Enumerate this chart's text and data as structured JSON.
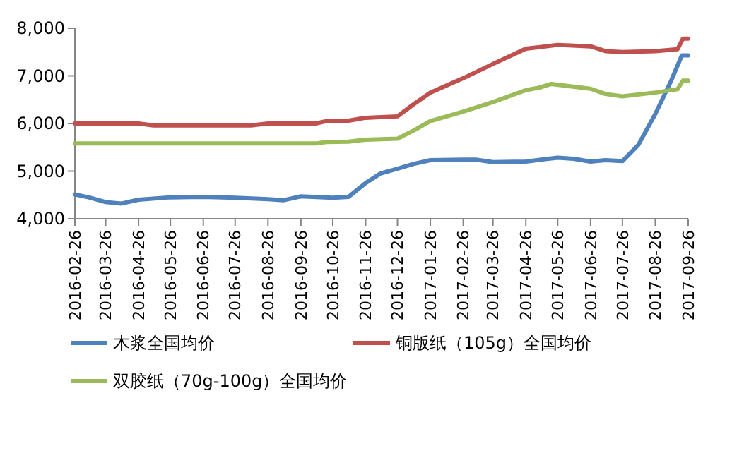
{
  "chart_data": {
    "type": "line",
    "legend": "bottom",
    "grid": false,
    "line_style": "solid",
    "marker": "none",
    "ylim": [
      4000,
      8000
    ],
    "yticks": [
      {
        "value": 4000,
        "label": "4,000"
      },
      {
        "value": 5000,
        "label": "5,000"
      },
      {
        "value": 6000,
        "label": "6,000"
      },
      {
        "value": 7000,
        "label": "7,000"
      },
      {
        "value": 8000,
        "label": "8,000"
      }
    ],
    "xlim": [
      "2016-02-26",
      "2017-09-26"
    ],
    "xticks": [
      "2016-02-26",
      "2016-03-26",
      "2016-04-26",
      "2016-05-26",
      "2016-06-26",
      "2016-07-26",
      "2016-08-26",
      "2016-09-26",
      "2016-10-26",
      "2016-11-26",
      "2016-12-26",
      "2017-01-26",
      "2017-02-26",
      "2017-03-26",
      "2017-04-26",
      "2017-05-26",
      "2017-06-26",
      "2017-07-26",
      "2017-08-26",
      "2017-09-26"
    ],
    "series": [
      {
        "name": "木浆全国均价",
        "color": "#4f81bd",
        "x": [
          "2016-02-26",
          "2016-03-10",
          "2016-03-26",
          "2016-04-10",
          "2016-04-26",
          "2016-05-26",
          "2016-06-26",
          "2016-07-26",
          "2016-08-26",
          "2016-09-10",
          "2016-09-26",
          "2016-10-26",
          "2016-11-10",
          "2016-11-26",
          "2016-12-10",
          "2016-12-26",
          "2017-01-10",
          "2017-01-26",
          "2017-02-26",
          "2017-03-10",
          "2017-03-26",
          "2017-04-26",
          "2017-05-10",
          "2017-05-26",
          "2017-06-10",
          "2017-06-26",
          "2017-07-10",
          "2017-07-26",
          "2017-08-10",
          "2017-08-26",
          "2017-09-10",
          "2017-09-20",
          "2017-09-26"
        ],
        "values": [
          4510,
          4450,
          4350,
          4320,
          4400,
          4450,
          4460,
          4440,
          4410,
          4390,
          4470,
          4440,
          4460,
          4750,
          4950,
          5050,
          5150,
          5230,
          5240,
          5240,
          5190,
          5200,
          5240,
          5280,
          5260,
          5200,
          5230,
          5210,
          5550,
          6200,
          6900,
          7430,
          7430
        ]
      },
      {
        "name": "铜版纸（105g）全国均价",
        "color": "#c0504d",
        "x": [
          "2016-02-26",
          "2016-04-26",
          "2016-05-10",
          "2016-08-10",
          "2016-08-26",
          "2016-10-10",
          "2016-10-20",
          "2016-11-10",
          "2016-11-26",
          "2016-12-26",
          "2017-01-10",
          "2017-01-26",
          "2017-02-26",
          "2017-03-26",
          "2017-04-26",
          "2017-05-26",
          "2017-06-26",
          "2017-07-10",
          "2017-07-26",
          "2017-08-26",
          "2017-09-16",
          "2017-09-21",
          "2017-09-26"
        ],
        "values": [
          6000,
          6000,
          5960,
          5960,
          6000,
          6000,
          6050,
          6060,
          6120,
          6150,
          6400,
          6650,
          6950,
          7250,
          7570,
          7650,
          7620,
          7520,
          7500,
          7520,
          7560,
          7780,
          7780
        ]
      },
      {
        "name": "双胶纸（70g-100g）全国均价",
        "color": "#9bbb59",
        "x": [
          "2016-02-26",
          "2016-10-10",
          "2016-10-20",
          "2016-11-10",
          "2016-11-26",
          "2016-12-26",
          "2017-01-10",
          "2017-01-26",
          "2017-02-26",
          "2017-03-26",
          "2017-04-26",
          "2017-05-10",
          "2017-05-20",
          "2017-06-26",
          "2017-07-10",
          "2017-07-26",
          "2017-08-26",
          "2017-09-16",
          "2017-09-21",
          "2017-09-26"
        ],
        "values": [
          5580,
          5580,
          5610,
          5620,
          5660,
          5680,
          5850,
          6050,
          6250,
          6450,
          6700,
          6760,
          6830,
          6730,
          6620,
          6570,
          6650,
          6720,
          6900,
          6900
        ]
      }
    ]
  }
}
